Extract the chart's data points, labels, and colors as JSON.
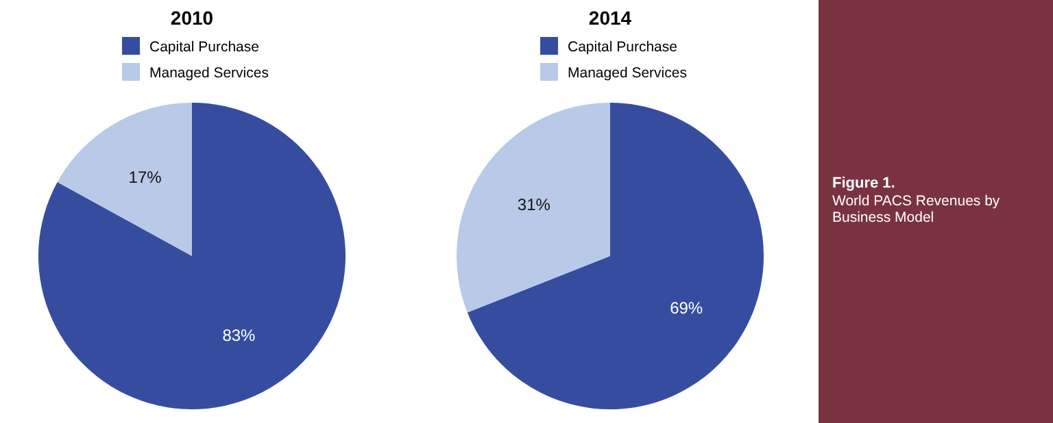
{
  "chart_data": [
    {
      "type": "pie",
      "title": "2010",
      "categories": [
        "Capital Purchase",
        "Managed Services"
      ],
      "values": [
        83,
        17
      ],
      "value_labels": [
        "83%",
        "17%"
      ],
      "colors": [
        "#364d9f",
        "#b9c9e8"
      ],
      "legend": "top"
    },
    {
      "type": "pie",
      "title": "2014",
      "categories": [
        "Capital Purchase",
        "Managed Services"
      ],
      "values": [
        69,
        31
      ],
      "value_labels": [
        "69%",
        "31%"
      ],
      "colors": [
        "#364d9f",
        "#b9c9e8"
      ],
      "legend": "top"
    },
    {
      "type": "other",
      "title": "Figure 1.",
      "subtitle": "World PACS Revenues by Business Model"
    }
  ]
}
